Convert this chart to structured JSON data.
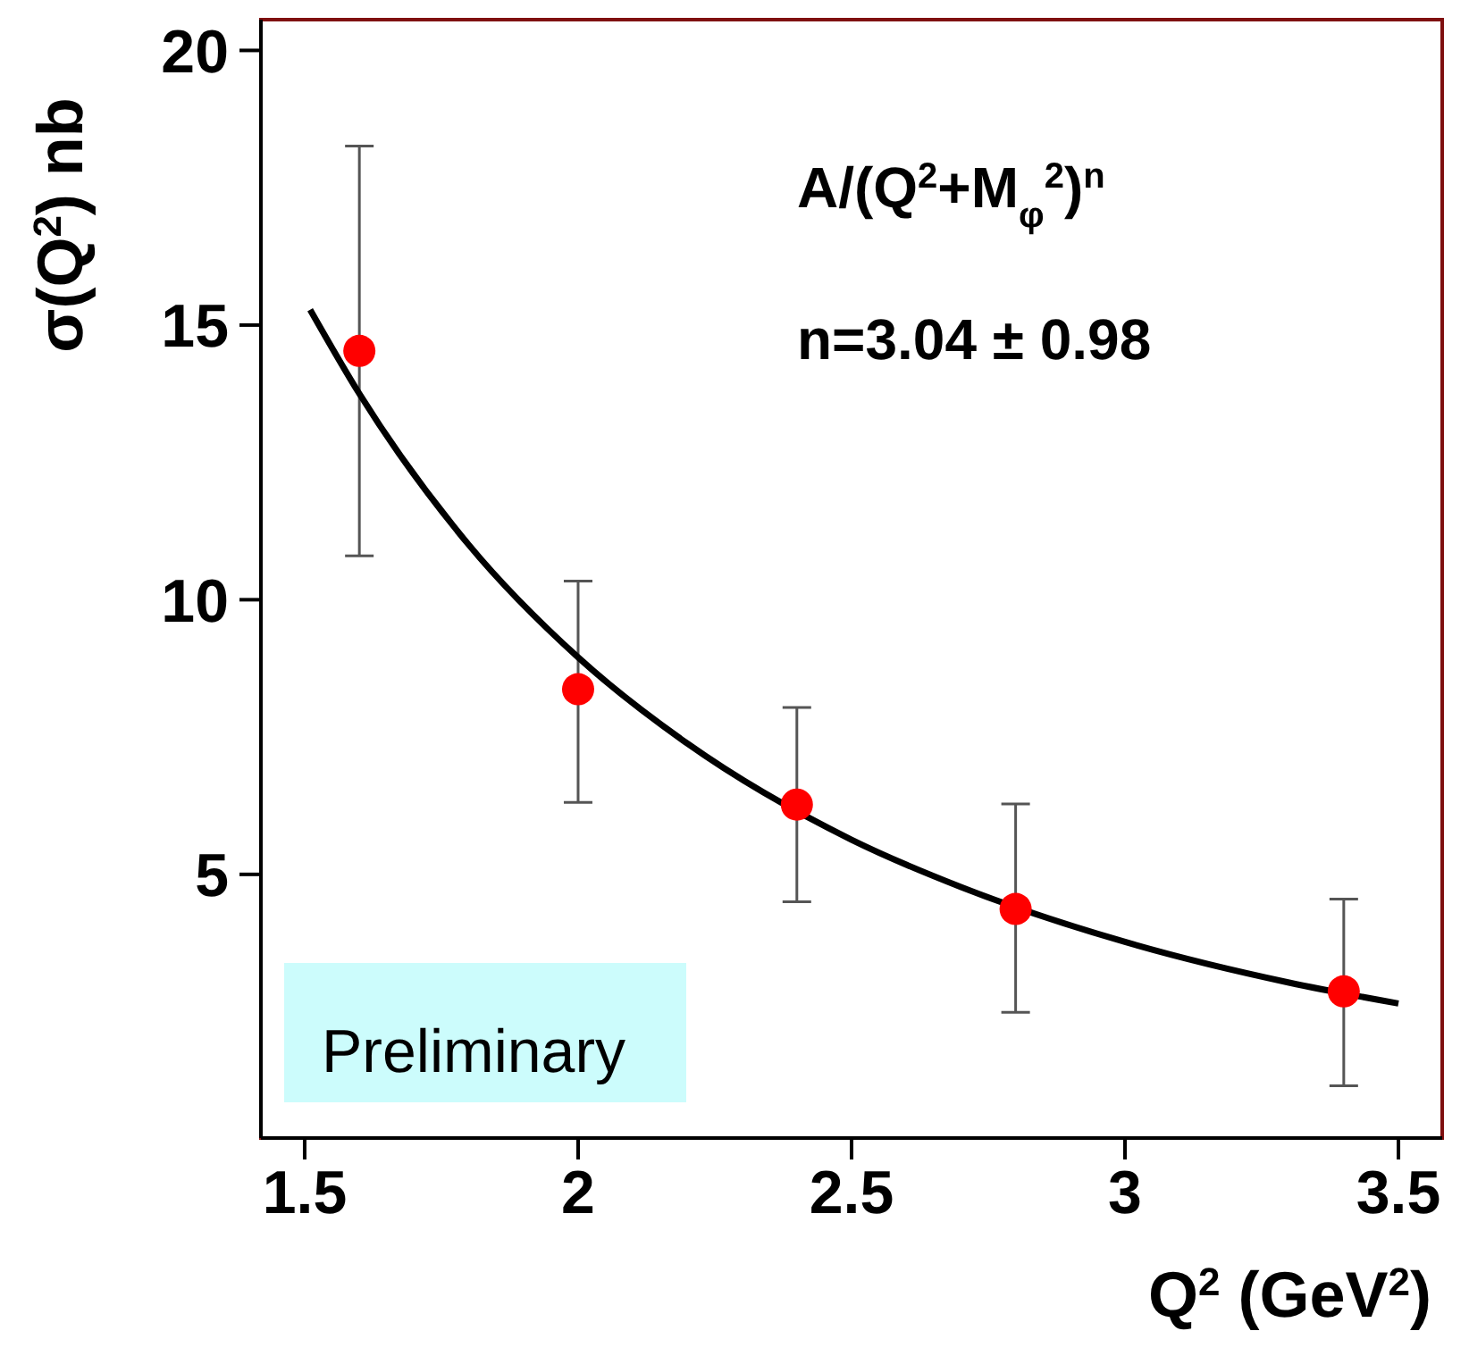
{
  "chart_data": {
    "type": "scatter",
    "xlabel": "Q$^{2}$ (GeV$^{2}$)",
    "ylabel": "σ(Q$^{2}$) nb",
    "x": [
      1.6,
      2.0,
      2.4,
      2.8,
      3.4
    ],
    "series": [
      {
        "color": "#ff0000",
        "marker": "circle",
        "values": [
          14.53,
          8.37,
          6.27,
          4.37,
          2.87
        ],
        "errors": [
          [
            10.8,
            18.26
          ],
          [
            6.31,
            10.34
          ],
          [
            4.5,
            8.04
          ],
          [
            2.49,
            6.28
          ],
          [
            1.15,
            4.55
          ]
        ]
      },
      {
        "type": "line",
        "color": "#000000",
        "marker": "none",
        "x": [
          1.51,
          1.6,
          1.8,
          2.0,
          2.2,
          2.5,
          2.7,
          3.0,
          3.3,
          3.5
        ],
        "values": [
          15.28,
          13.75,
          11.0,
          8.95,
          7.38,
          5.63,
          4.77,
          3.77,
          3.03,
          2.65
        ]
      }
    ],
    "xlim": [
      1.42,
      3.58
    ],
    "xticks": [
      1.5,
      2,
      2.5,
      3,
      3.5
    ],
    "ylim": [
      0.2,
      20.56
    ],
    "yticks": [
      5,
      10,
      15,
      20
    ],
    "annotations": [
      "A/(Q$^{2}$+M$_{φ}$$^{2}$)$^{n}$",
      "n=3.04 ± 0.98",
      "Preliminary"
    ]
  }
}
